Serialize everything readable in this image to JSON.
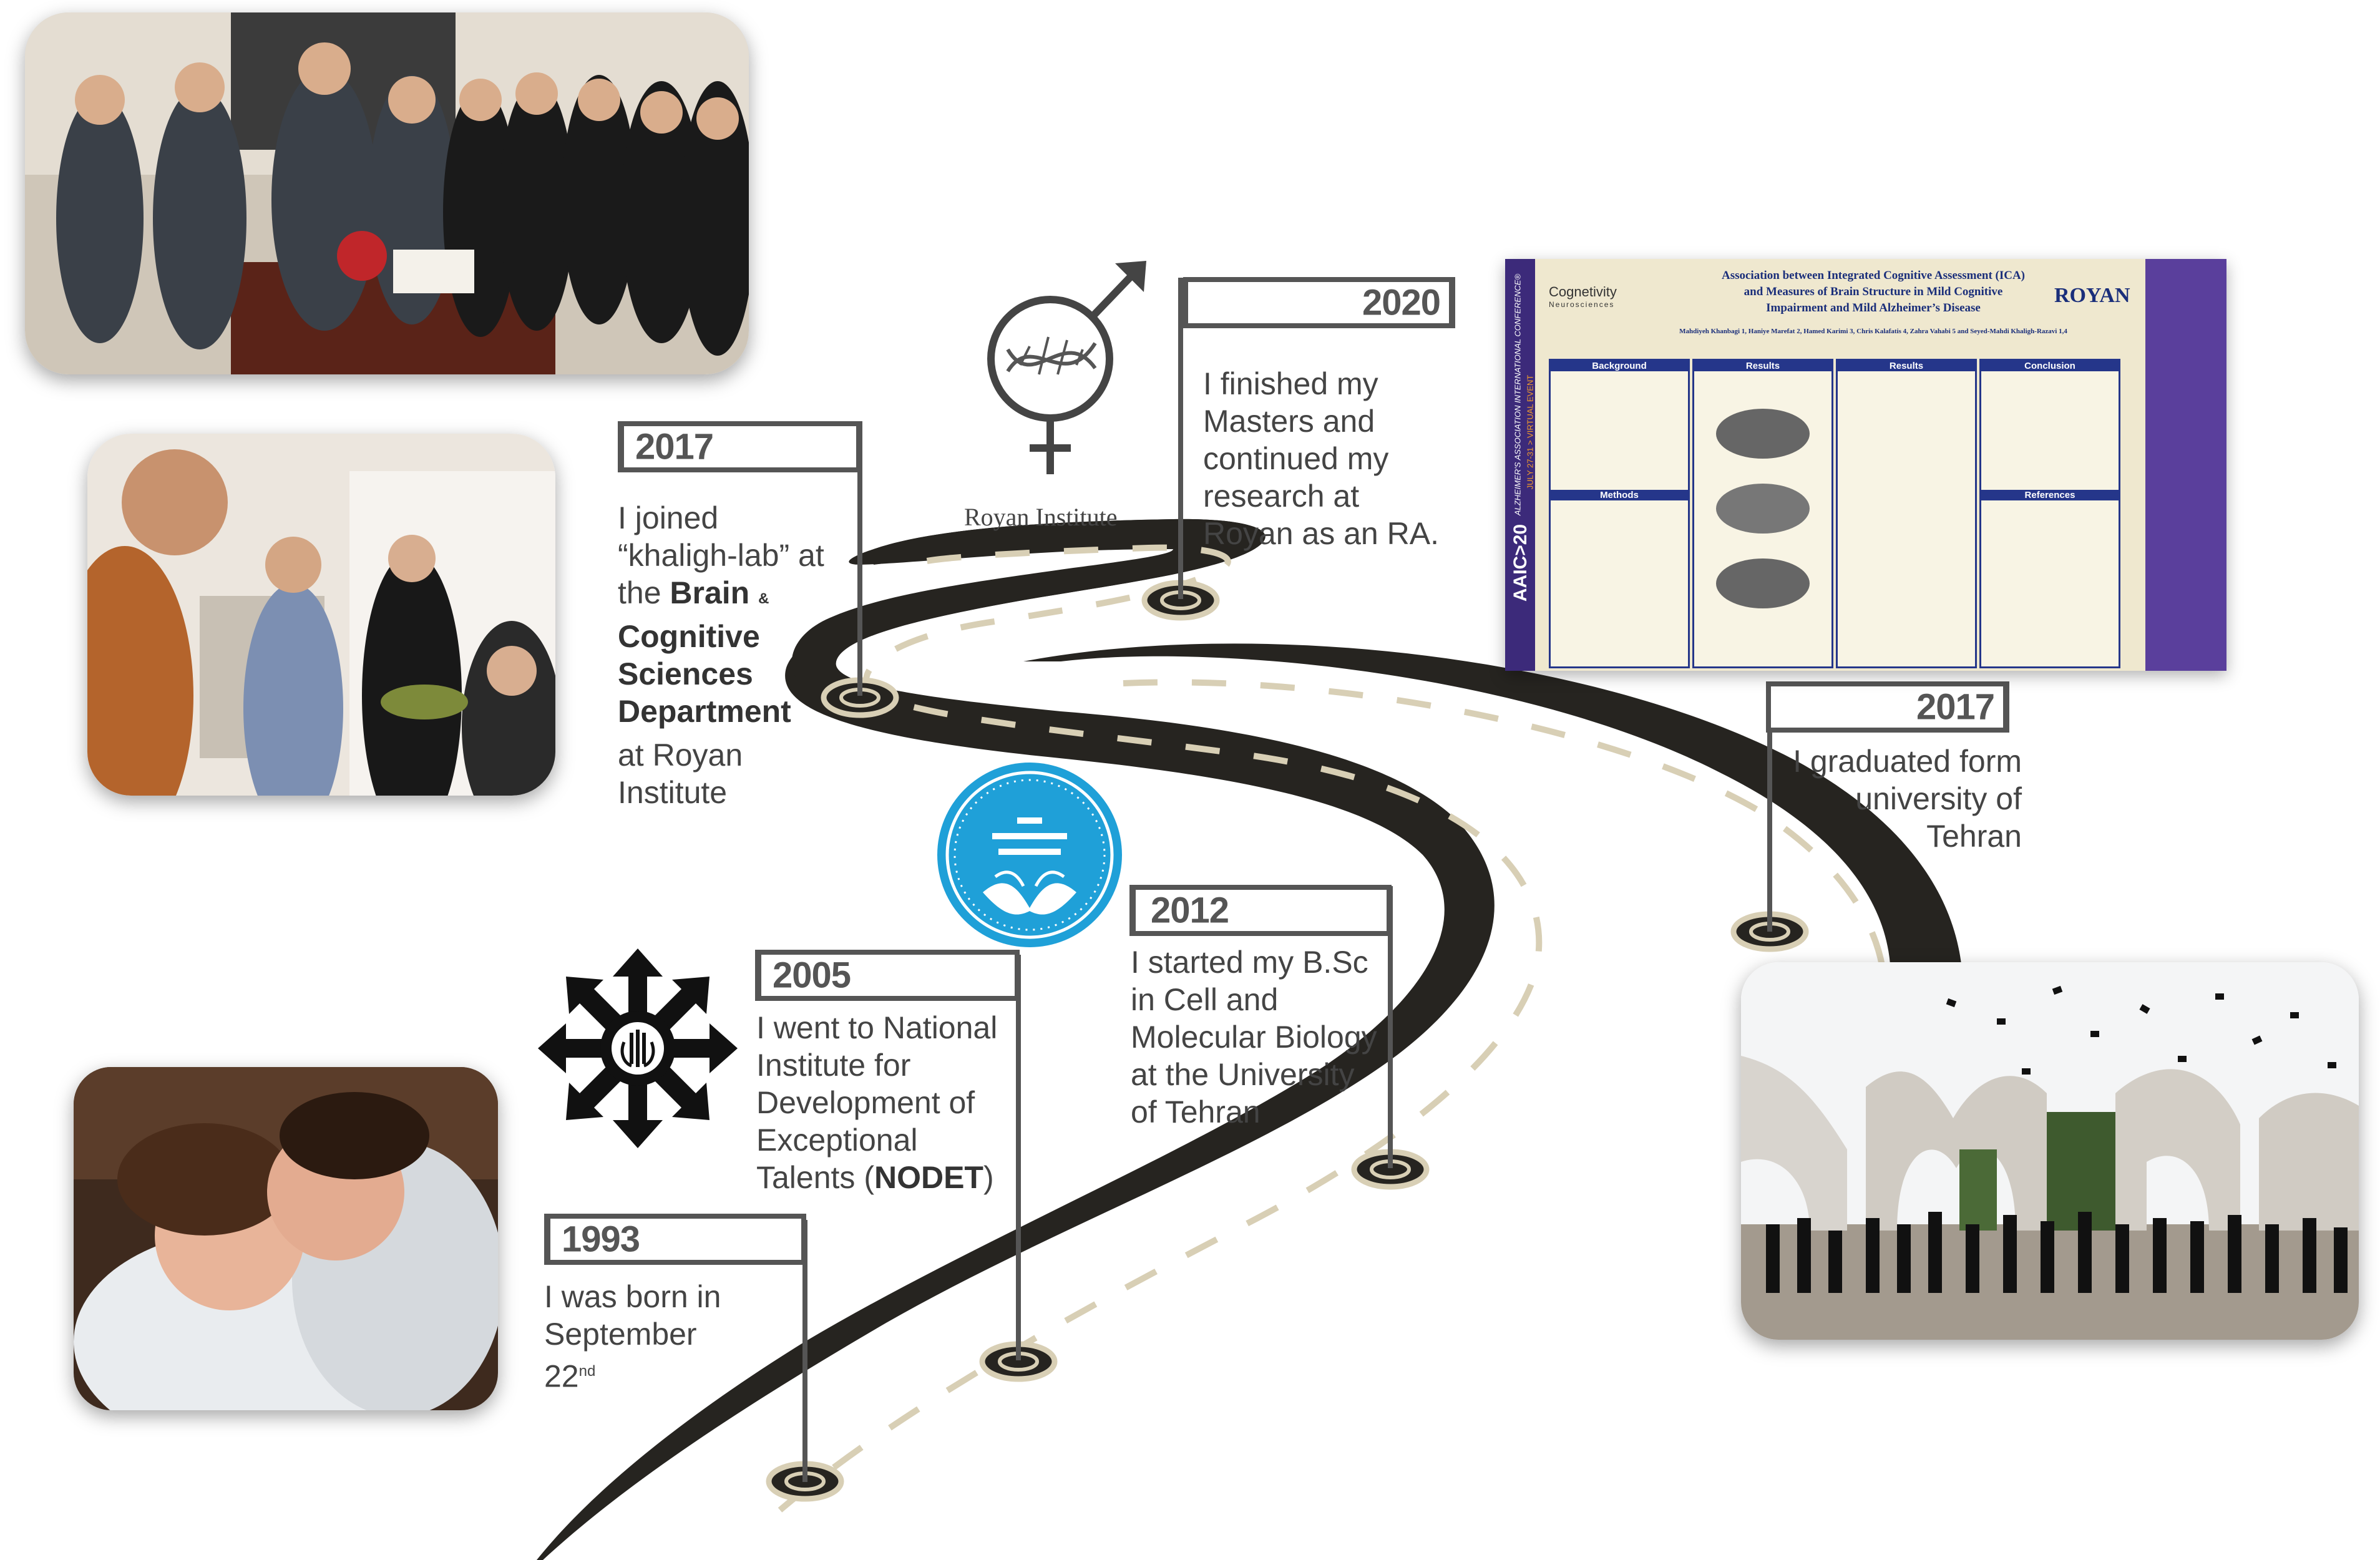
{
  "milestones": [
    {
      "year": "1993",
      "text_lines": [
        "I was born in",
        "September"
      ],
      "day": "22",
      "day_suffix": "nd"
    },
    {
      "year": "2005",
      "text_lines": [
        "I went to National",
        "Institute for",
        "Development of",
        "Exceptional"
      ],
      "last_line_pre": "Talents (",
      "last_line_bold": "NODET",
      "last_line_post": ")"
    },
    {
      "year": "2012",
      "text_lines": [
        "I started my B.Sc",
        "in Cell and",
        "Molecular Biology",
        "at the University",
        "of Tehran"
      ]
    },
    {
      "year": "2017",
      "text_lines": [
        "I graduated form",
        "university of",
        "Tehran"
      ]
    },
    {
      "year": "2017",
      "text_lines": [
        "I joined",
        "“khaligh-lab” at"
      ],
      "line3_pre": "the ",
      "line3_bold": "Brain",
      "line3_amp": "&",
      "bold_lines": [
        "Cognitive",
        "Sciences",
        "Department"
      ],
      "tail_lines": [
        "at Royan",
        "Institute"
      ]
    },
    {
      "year": "2020",
      "text_lines": [
        "I finished my",
        "Masters and",
        "continued my",
        "research at",
        "Royan as an RA."
      ]
    }
  ],
  "royan_caption": "Royan Institute",
  "poster": {
    "title_lines": [
      "Association between Integrated Cognitive Assessment (ICA)",
      "and Measures of Brain Structure in Mild Cognitive",
      "Impairment and Mild Alzheimer’s Disease"
    ],
    "authors": "Mahdiyeh Khanbagi 1, Haniye Marefat 2, Hamed Karimi 3, Chris Kalafatis 4, Zahra Vahabi 5 and Seyed-Mahdi Khaligh-Razavi 1,4",
    "left_brand": "Cognetivity",
    "left_brand_sub": "Neurosciences",
    "right_brand": "ROYAN",
    "sidebar_top": "AAIC>20",
    "sidebar_text": "ALZHEIMER'S ASSOCIATION INTERNATIONAL CONFERENCE®",
    "sidebar_date": "JULY 27-31 > VIRTUAL EVENT",
    "sections": [
      "Background",
      "Results",
      "Results",
      "Conclusion",
      "Methods",
      "References"
    ]
  },
  "colors": {
    "road": "#262420",
    "dash": "#d8cfb5",
    "flag_border": "#555555",
    "poster_purple": "#3c2a7a",
    "ut_blue": "#1fa0d8"
  }
}
